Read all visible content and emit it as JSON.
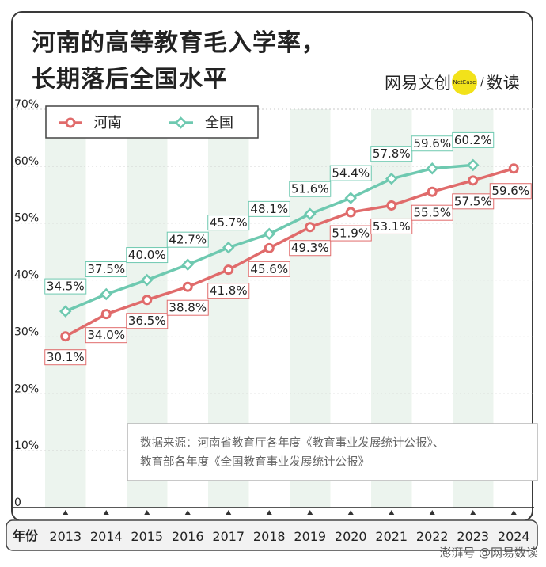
{
  "title_lines": [
    "河南的高等教育毛入学率，",
    "长期落后全国水平"
  ],
  "logo": {
    "part1": "网易文创",
    "badge": "NetEase",
    "slash": "/",
    "part2": "数读"
  },
  "source_lines": [
    "数据来源：河南省教育厅各年度《教育事业发展统计公报》、",
    "教育部各年度《全国教育事业发展统计公报》"
  ],
  "watermark": "澎湃号 @网易数读",
  "colors": {
    "henan": "#e06b6b",
    "national": "#6ec9b0",
    "band": "#ecf4ee"
  },
  "chart_data": {
    "type": "line",
    "x_axis_label": "年份",
    "categories": [
      "2013",
      "2014",
      "2015",
      "2016",
      "2017",
      "2018",
      "2019",
      "2020",
      "2021",
      "2022",
      "2023",
      "2024"
    ],
    "y_ticks": [
      "0",
      "10%",
      "20%",
      "30%",
      "40%",
      "50%",
      "60%",
      "70%"
    ],
    "ylim": [
      0,
      70
    ],
    "legend_position": "top-left",
    "series": [
      {
        "name": "河南",
        "values": [
          30.1,
          34.0,
          36.5,
          38.8,
          41.8,
          45.6,
          49.3,
          51.9,
          53.1,
          55.5,
          57.5,
          59.6
        ],
        "labels": [
          "30.1%",
          "34.0%",
          "36.5%",
          "38.8%",
          "41.8%",
          "45.6%",
          "49.3%",
          "51.9%",
          "53.1%",
          "55.5%",
          "57.5%",
          "59.6%"
        ]
      },
      {
        "name": "全国",
        "values": [
          34.5,
          37.5,
          40.0,
          42.7,
          45.7,
          48.1,
          51.6,
          54.4,
          57.8,
          59.6,
          60.2,
          null
        ],
        "labels": [
          "34.5%",
          "37.5%",
          "40.0%",
          "42.7%",
          "45.7%",
          "48.1%",
          "51.6%",
          "54.4%",
          "57.8%",
          "59.6%",
          "60.2%",
          ""
        ]
      }
    ]
  }
}
